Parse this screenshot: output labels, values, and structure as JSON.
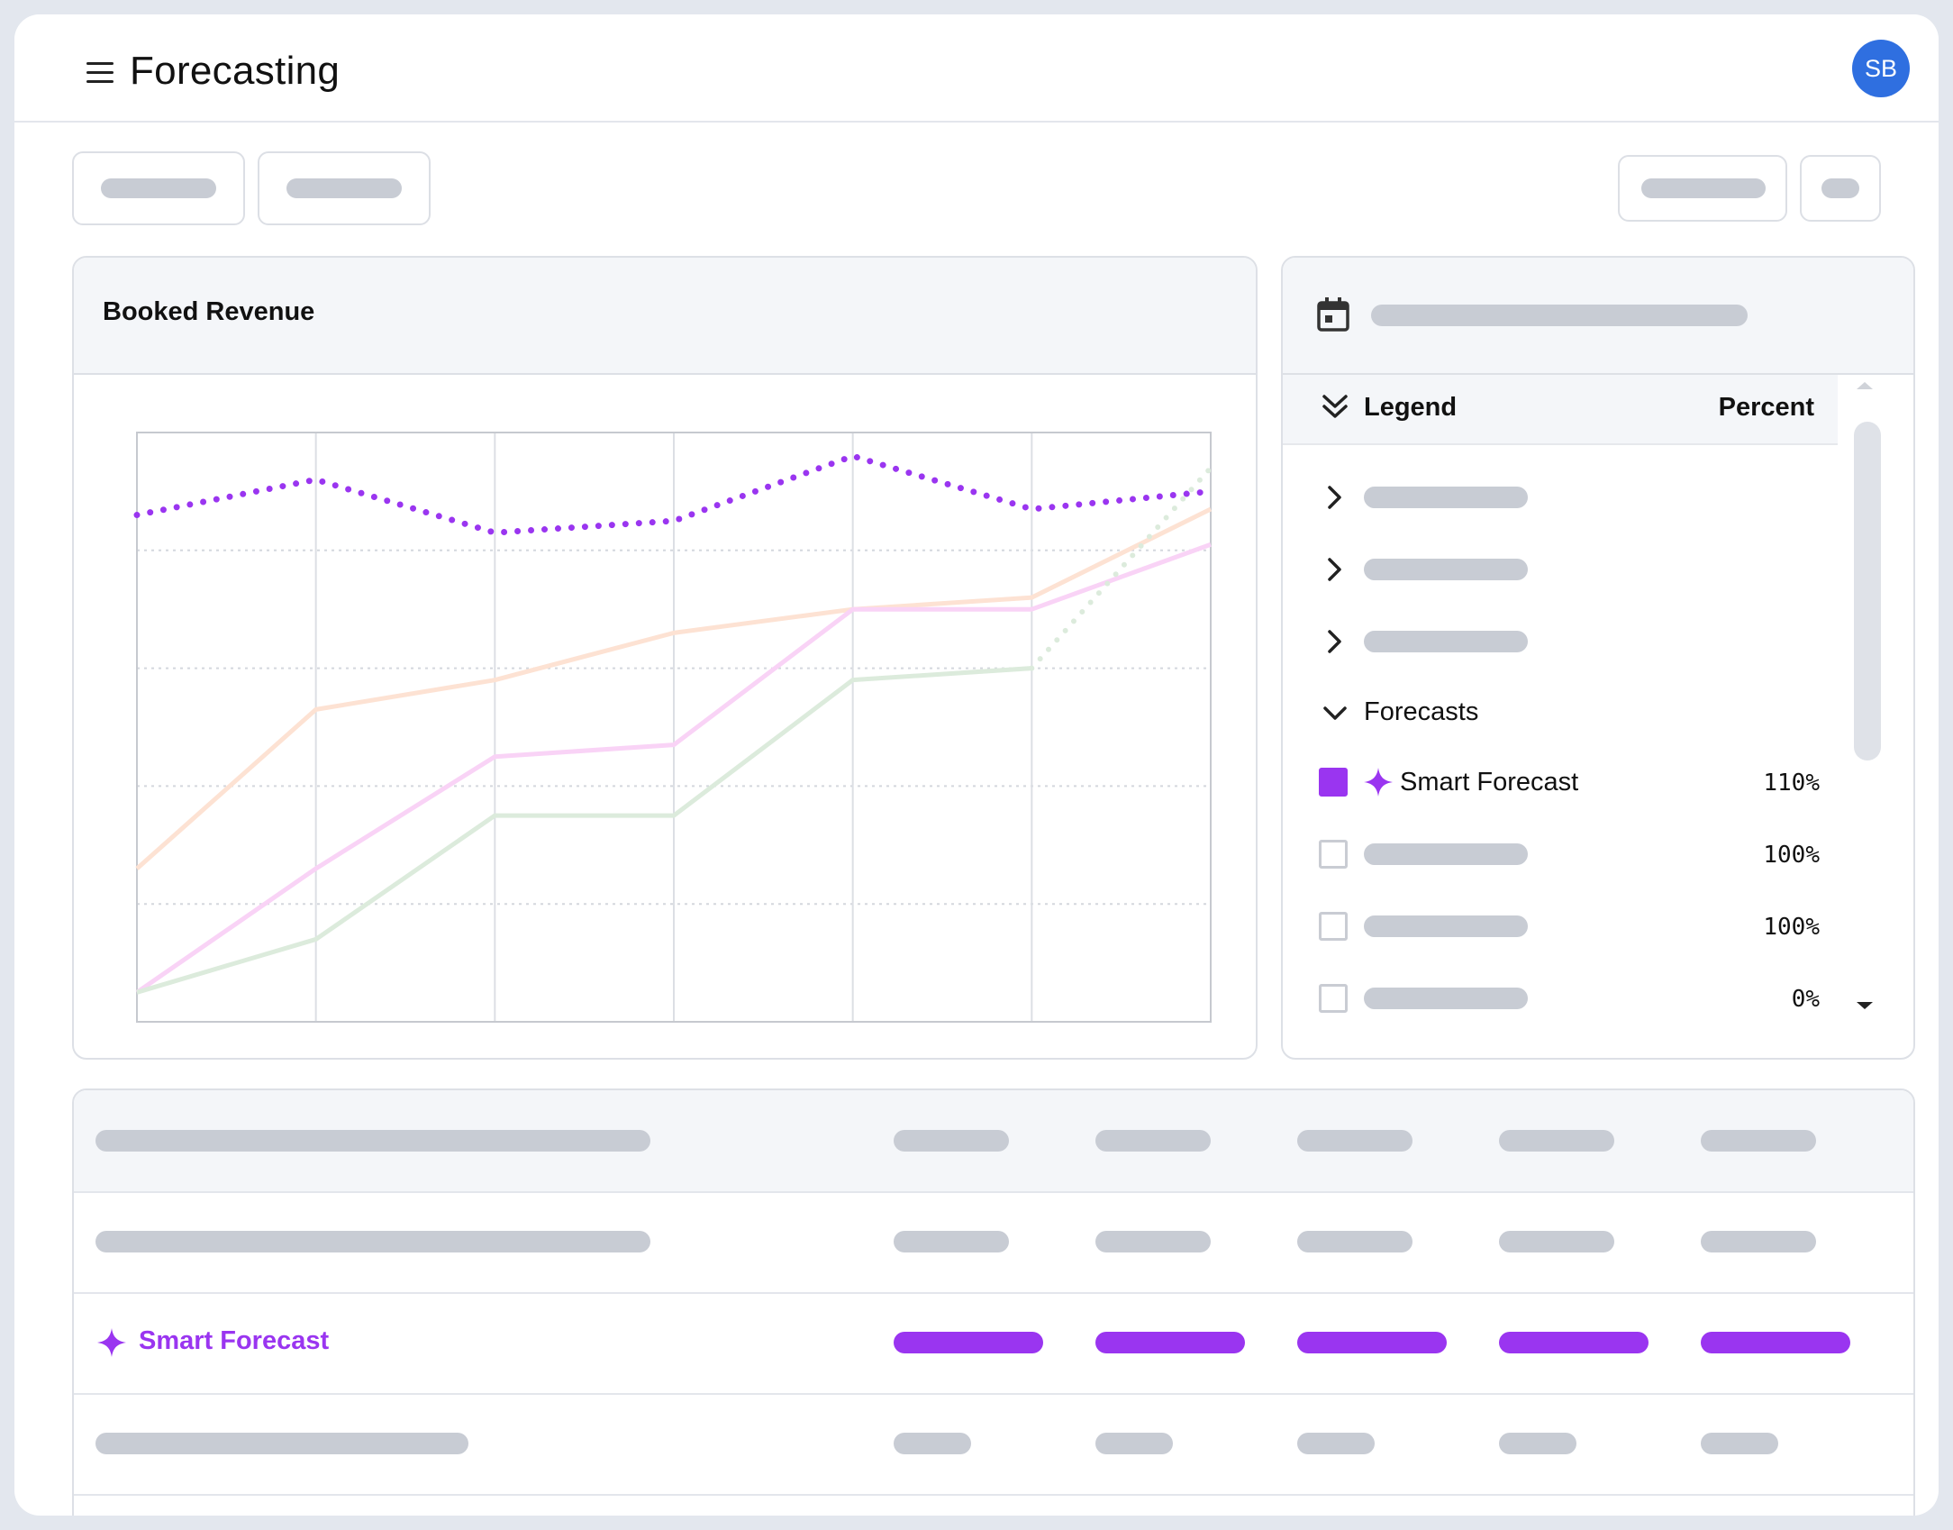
{
  "app": {
    "title": "Forecasting",
    "avatar_initials": "SB",
    "accent": "#9a35f0",
    "avatar_color": "#2f6fe0"
  },
  "icons": {
    "menu": "hamburger-icon",
    "calendar": "calendar-icon",
    "collapse_all": "double-chevron-down-icon",
    "sparkle": "sparkle-icon"
  },
  "chart_card": {
    "title": "Booked Revenue"
  },
  "legend": {
    "header_label": "Legend",
    "header_percent": "Percent",
    "group_label": "Forecasts",
    "items": [
      {
        "label": "Smart Forecast",
        "percent": "110%",
        "checked": true,
        "color": "#9a35f0"
      },
      {
        "label": "",
        "percent": "100%",
        "checked": false
      },
      {
        "label": "",
        "percent": "100%",
        "checked": false
      },
      {
        "label": "",
        "percent": "0%",
        "checked": false
      }
    ]
  },
  "table": {
    "highlight_row_label": "Smart Forecast"
  },
  "chart_data": {
    "type": "line",
    "title": "Booked Revenue",
    "xlabel": "",
    "ylabel": "",
    "x": [
      0,
      1,
      2,
      3,
      4,
      5,
      6
    ],
    "ylim": [
      0,
      100
    ],
    "grid": true,
    "series": [
      {
        "name": "Smart Forecast",
        "style": "dotted",
        "color": "#9a35f0",
        "values": [
          86,
          92,
          83,
          85,
          96,
          87,
          90
        ]
      },
      {
        "name": "",
        "style": "solid",
        "color": "#fde2d3",
        "values": [
          26,
          53,
          58,
          66,
          70,
          72,
          87
        ]
      },
      {
        "name": "",
        "style": "solid",
        "color": "#f9d3f6",
        "values": [
          5,
          26,
          45,
          47,
          70,
          70,
          81
        ]
      },
      {
        "name": "",
        "style": "solid-then-dotted",
        "color": "#dcebdc",
        "values": [
          5,
          14,
          35,
          35,
          58,
          60,
          94
        ]
      }
    ]
  }
}
